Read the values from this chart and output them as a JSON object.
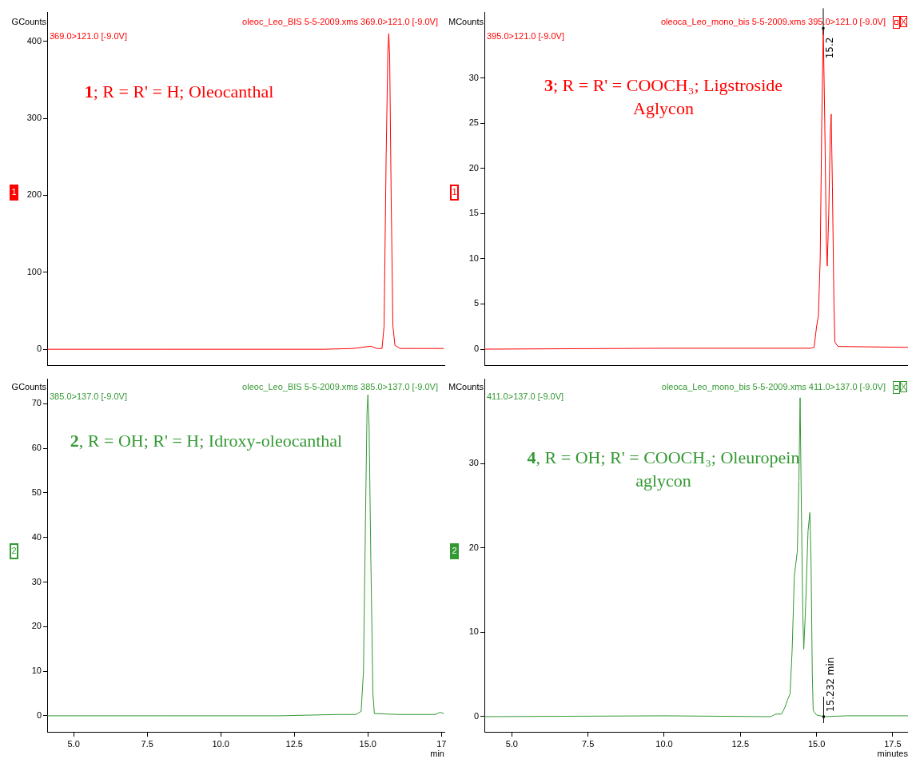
{
  "chart_data": [
    {
      "type": "line",
      "title": "oleoc_Leo_BIS 5-5-2009.xms 369.0>121.0 [-9.0V]",
      "subtitle": "369.0>121.0 [-9.0V]",
      "ylabel": "GCounts",
      "color": "#ff0000",
      "marker": "none",
      "line_style": "solid",
      "tick_labels": "y",
      "xlim": [
        4.1,
        17.6
      ],
      "ylim": [
        -21,
        438
      ],
      "yticks": [
        0,
        100,
        200,
        300,
        400
      ],
      "annotations": [
        "1; R = R' = H; Oleocanthal",
        "1"
      ],
      "x": [
        4.1,
        8,
        12,
        13.5,
        14.5,
        14.9,
        15.1,
        15.3,
        15.48,
        15.55,
        15.62,
        15.68,
        15.71,
        15.74,
        15.79,
        15.85,
        15.92,
        16.1,
        17.58
      ],
      "values": [
        0,
        0,
        0,
        0,
        1,
        3,
        4,
        1,
        1,
        30,
        250,
        390,
        410,
        380,
        200,
        30,
        5,
        1,
        1
      ]
    },
    {
      "type": "line",
      "title": "oleoca_Leo_mono_bis 5-5-2009.xms 395.0>121.0 [-9.0V]",
      "subtitle": "395.0>121.0 [-9.0V]",
      "ylabel": "MCounts",
      "color": "#ff0000",
      "marker": "none",
      "line_style": "solid",
      "tick_labels": "y",
      "xlim": [
        4.1,
        18
      ],
      "ylim": [
        -1.8,
        37.3
      ],
      "yticks": [
        0,
        5,
        10,
        15,
        20,
        25,
        30
      ],
      "annotations": [
        "3; R = R' = COOCH₃; Ligstroside\nAglycon",
        "1",
        {
          "text": "15.2",
          "x": 15.22,
          "y": 35.5
        }
      ],
      "x": [
        4.1,
        10,
        14.8,
        14.92,
        15,
        15.06,
        15.12,
        15.17,
        15.22,
        15.27,
        15.32,
        15.35,
        15.4,
        15.45,
        15.48,
        15.52,
        15.57,
        15.6,
        15.7,
        18
      ],
      "values": [
        0,
        0.1,
        0.1,
        0.2,
        2.5,
        3.7,
        10,
        25,
        35.5,
        25,
        12,
        9.2,
        15,
        24,
        26,
        18,
        5,
        0.8,
        0.3,
        0.2
      ]
    },
    {
      "type": "line",
      "title": "oleoc_Leo_BIS 5-5-2009.xms 385.0>137.0 [-9.0V]",
      "subtitle": "385.0>137.0 [-9.0V]",
      "ylabel": "GCounts",
      "xlabel": "min",
      "color": "#339933",
      "marker": "none",
      "line_style": "solid",
      "xlim": [
        4.1,
        17.6
      ],
      "xticks": [
        {
          "value": 5,
          "label": "5.0"
        },
        7.5,
        {
          "value": 10,
          "label": "10.0"
        },
        12.5,
        {
          "value": 15,
          "label": "15.0"
        },
        {
          "value": 17.5,
          "label": "17"
        }
      ],
      "ylim": [
        -3.6,
        75.5
      ],
      "yticks": [
        0,
        10,
        20,
        30,
        40,
        50,
        60,
        70
      ],
      "annotations": [
        "2, R = OH; R' = H; Idroxy-oleocanthal",
        "2"
      ],
      "x": [
        4.1,
        8,
        12,
        14,
        14.6,
        14.77,
        14.85,
        14.92,
        14.97,
        15,
        15.04,
        15.1,
        15.17,
        15.22,
        16,
        17.3,
        17.45,
        17.58
      ],
      "values": [
        0,
        0,
        0,
        0.3,
        0.3,
        1,
        10,
        45,
        68,
        72,
        65,
        35,
        5,
        0.5,
        0.3,
        0.3,
        0.8,
        0.5
      ]
    },
    {
      "type": "line",
      "title": "oleoca_Leo_mono_bis 5-5-2009.xms 411.0>137.0 [-9.0V]",
      "subtitle": "411.0>137.0 [-9.0V]",
      "ylabel": "MCounts",
      "xlabel": "minutes",
      "color": "#339933",
      "marker": "none",
      "line_style": "solid",
      "xlim": [
        4.1,
        18
      ],
      "xticks": [
        {
          "value": 5,
          "label": "5.0"
        },
        7.5,
        {
          "value": 10,
          "label": "10.0"
        },
        12.5,
        {
          "value": 15,
          "label": "15.0"
        },
        17.5
      ],
      "ylim": [
        -1.8,
        40
      ],
      "yticks": [
        0,
        10,
        20,
        30
      ],
      "annotations": [
        "4, R = OH; R' = COOCH₃; Oleuropein\naglycon",
        "2",
        {
          "text": "15.232 min",
          "x": 15.232,
          "y": 0
        }
      ],
      "x": [
        4.1,
        10,
        13.5,
        13.65,
        13.85,
        13.95,
        14.05,
        14.13,
        14.2,
        14.27,
        14.37,
        14.42,
        14.46,
        14.5,
        14.55,
        14.58,
        14.64,
        14.72,
        14.78,
        14.82,
        14.86,
        14.89,
        15,
        15.232,
        16,
        18
      ],
      "values": [
        0,
        0.1,
        0,
        0.3,
        0.3,
        1,
        2,
        2.7,
        8,
        16.6,
        19.7,
        28,
        37.8,
        25,
        12,
        8,
        13,
        22,
        24.2,
        18,
        5,
        0.7,
        0.2,
        0,
        0.1,
        0.1
      ]
    }
  ]
}
